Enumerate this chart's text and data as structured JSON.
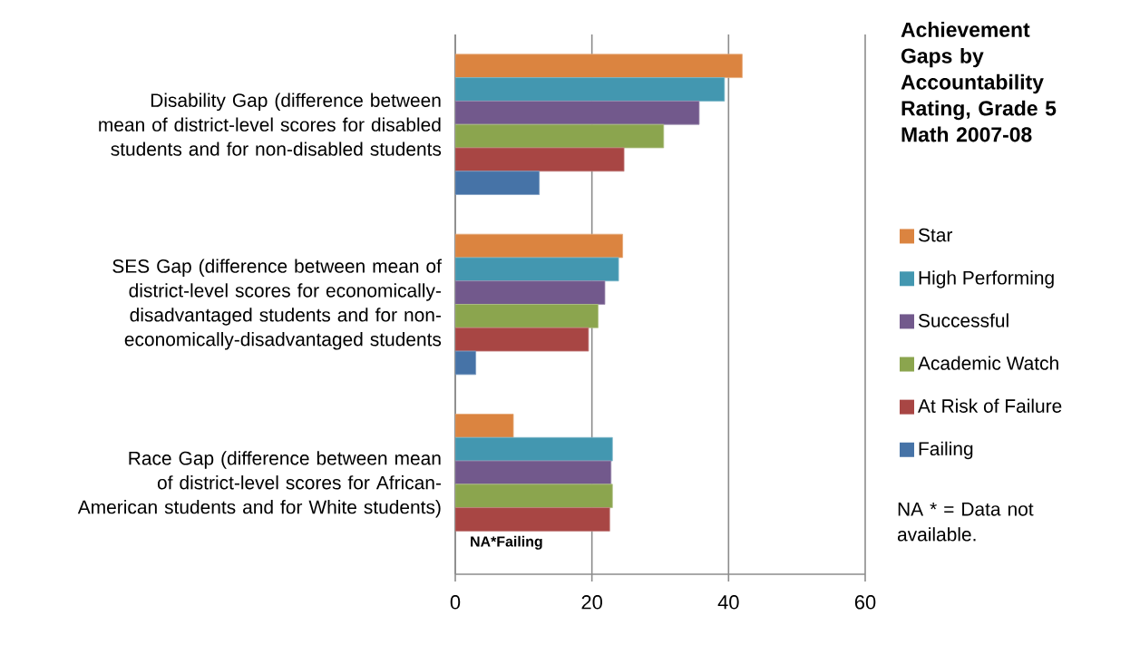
{
  "chart_data": {
    "type": "bar",
    "orientation": "horizontal",
    "title": "Achievement Gaps by Accountability Rating, Grade 5 Math 2007-08",
    "categories": [
      "Disability Gap (difference between mean of district-level scores for disabled students and for non-disabled students",
      "SES Gap (difference between mean of district-level scores for economically-disadvantaged students and for non-economically-disadvantaged students",
      "Race Gap (difference between mean of district-level scores for African-American students and for White students)"
    ],
    "series": [
      {
        "name": "Star",
        "color": "#db8440",
        "values": [
          42.0,
          24.5,
          8.5
        ]
      },
      {
        "name": "High Performing",
        "color": "#4397b0",
        "values": [
          39.4,
          23.9,
          23.0
        ]
      },
      {
        "name": "Successful",
        "color": "#72598c",
        "values": [
          35.7,
          21.9,
          22.8
        ]
      },
      {
        "name": "Academic Watch",
        "color": "#8ba54e",
        "values": [
          30.5,
          20.9,
          23.0
        ]
      },
      {
        "name": "At Risk of Failure",
        "color": "#a84644",
        "values": [
          24.7,
          19.5,
          22.6
        ]
      },
      {
        "name": "Failing",
        "color": "#4673a7",
        "values": [
          12.3,
          3.0,
          null
        ]
      }
    ],
    "xlim": [
      0,
      60
    ],
    "xticks": [
      0,
      20,
      40,
      60
    ],
    "grid": "x",
    "legend": "right",
    "annotations": [
      "NA*Failing",
      "NA * = Data not available."
    ]
  }
}
